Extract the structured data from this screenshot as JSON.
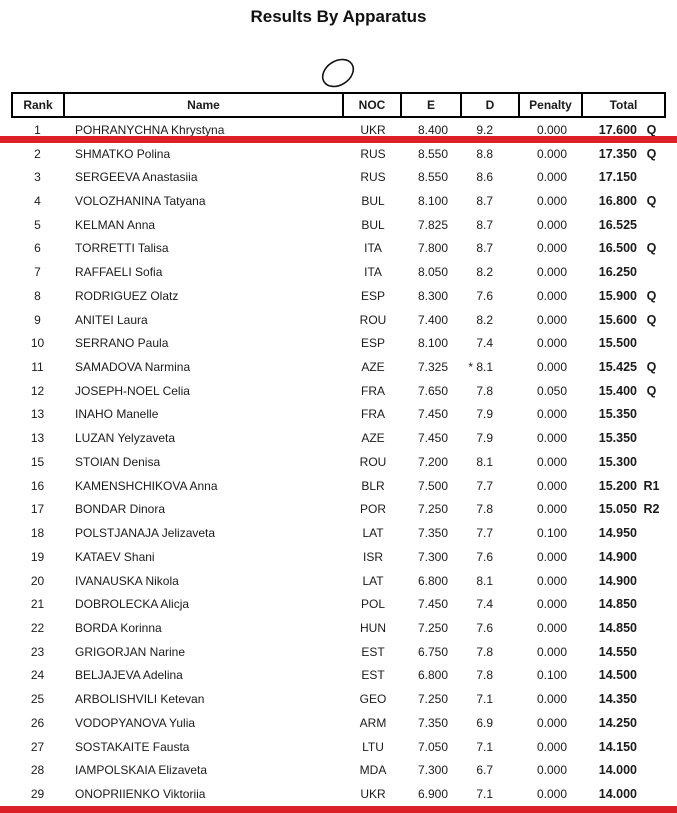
{
  "page": {
    "title": "Results By Apparatus"
  },
  "colors": {
    "accent_red": "#dc2027"
  },
  "table": {
    "columns": [
      "Rank",
      "Name",
      "NOC",
      "E",
      "D",
      "Penalty",
      "Total"
    ],
    "rows": [
      {
        "rank": "1",
        "name": "POHRANYCHNA Khrystyna",
        "noc": "UKR",
        "e": "8.400",
        "d": "9.2",
        "penalty": "0.000",
        "total": "17.600",
        "qual": "Q"
      },
      {
        "rank": "2",
        "name": "SHMATKO Polina",
        "noc": "RUS",
        "e": "8.550",
        "d": "8.8",
        "penalty": "0.000",
        "total": "17.350",
        "qual": "Q"
      },
      {
        "rank": "3",
        "name": "SERGEEVA Anastasiia",
        "noc": "RUS",
        "e": "8.550",
        "d": "8.6",
        "penalty": "0.000",
        "total": "17.150",
        "qual": ""
      },
      {
        "rank": "4",
        "name": "VOLOZHANINA Tatyana",
        "noc": "BUL",
        "e": "8.100",
        "d": "8.7",
        "penalty": "0.000",
        "total": "16.800",
        "qual": "Q"
      },
      {
        "rank": "5",
        "name": "KELMAN Anna",
        "noc": "BUL",
        "e": "7.825",
        "d": "8.7",
        "penalty": "0.000",
        "total": "16.525",
        "qual": ""
      },
      {
        "rank": "6",
        "name": "TORRETTI Talisa",
        "noc": "ITA",
        "e": "7.800",
        "d": "8.7",
        "penalty": "0.000",
        "total": "16.500",
        "qual": "Q"
      },
      {
        "rank": "7",
        "name": "RAFFAELI Sofia",
        "noc": "ITA",
        "e": "8.050",
        "d": "8.2",
        "penalty": "0.000",
        "total": "16.250",
        "qual": ""
      },
      {
        "rank": "8",
        "name": "RODRIGUEZ Olatz",
        "noc": "ESP",
        "e": "8.300",
        "d": "7.6",
        "penalty": "0.000",
        "total": "15.900",
        "qual": "Q"
      },
      {
        "rank": "9",
        "name": "ANITEI Laura",
        "noc": "ROU",
        "e": "7.400",
        "d": "8.2",
        "penalty": "0.000",
        "total": "15.600",
        "qual": "Q"
      },
      {
        "rank": "10",
        "name": "SERRANO Paula",
        "noc": "ESP",
        "e": "8.100",
        "d": "7.4",
        "penalty": "0.000",
        "total": "15.500",
        "qual": ""
      },
      {
        "rank": "11",
        "name": "SAMADOVA Narmina",
        "noc": "AZE",
        "e": "7.325",
        "d": "* 8.1",
        "penalty": "0.000",
        "total": "15.425",
        "qual": "Q"
      },
      {
        "rank": "12",
        "name": "JOSEPH-NOEL Celia",
        "noc": "FRA",
        "e": "7.650",
        "d": "7.8",
        "penalty": "0.050",
        "total": "15.400",
        "qual": "Q"
      },
      {
        "rank": "13",
        "name": "INAHO Manelle",
        "noc": "FRA",
        "e": "7.450",
        "d": "7.9",
        "penalty": "0.000",
        "total": "15.350",
        "qual": ""
      },
      {
        "rank": "13",
        "name": "LUZAN Yelyzaveta",
        "noc": "AZE",
        "e": "7.450",
        "d": "7.9",
        "penalty": "0.000",
        "total": "15.350",
        "qual": ""
      },
      {
        "rank": "15",
        "name": "STOIAN Denisa",
        "noc": "ROU",
        "e": "7.200",
        "d": "8.1",
        "penalty": "0.000",
        "total": "15.300",
        "qual": ""
      },
      {
        "rank": "16",
        "name": "KAMENSHCHIKOVA Anna",
        "noc": "BLR",
        "e": "7.500",
        "d": "7.7",
        "penalty": "0.000",
        "total": "15.200",
        "qual": "R1"
      },
      {
        "rank": "17",
        "name": "BONDAR Dinora",
        "noc": "POR",
        "e": "7.250",
        "d": "7.8",
        "penalty": "0.000",
        "total": "15.050",
        "qual": "R2"
      },
      {
        "rank": "18",
        "name": "POLSTJANAJA Jelizaveta",
        "noc": "LAT",
        "e": "7.350",
        "d": "7.7",
        "penalty": "0.100",
        "total": "14.950",
        "qual": ""
      },
      {
        "rank": "19",
        "name": "KATAEV Shani",
        "noc": "ISR",
        "e": "7.300",
        "d": "7.6",
        "penalty": "0.000",
        "total": "14.900",
        "qual": ""
      },
      {
        "rank": "20",
        "name": "IVANAUSKA Nikola",
        "noc": "LAT",
        "e": "6.800",
        "d": "8.1",
        "penalty": "0.000",
        "total": "14.900",
        "qual": ""
      },
      {
        "rank": "21",
        "name": "DOBROLECKA Alicja",
        "noc": "POL",
        "e": "7.450",
        "d": "7.4",
        "penalty": "0.000",
        "total": "14.850",
        "qual": ""
      },
      {
        "rank": "22",
        "name": "BORDA Korinna",
        "noc": "HUN",
        "e": "7.250",
        "d": "7.6",
        "penalty": "0.000",
        "total": "14.850",
        "qual": ""
      },
      {
        "rank": "23",
        "name": "GRIGORJAN Narine",
        "noc": "EST",
        "e": "6.750",
        "d": "7.8",
        "penalty": "0.000",
        "total": "14.550",
        "qual": ""
      },
      {
        "rank": "24",
        "name": "BELJAJEVA Adelina",
        "noc": "EST",
        "e": "6.800",
        "d": "7.8",
        "penalty": "0.100",
        "total": "14.500",
        "qual": ""
      },
      {
        "rank": "25",
        "name": "ARBOLISHVILI Ketevan",
        "noc": "GEO",
        "e": "7.250",
        "d": "7.1",
        "penalty": "0.000",
        "total": "14.350",
        "qual": ""
      },
      {
        "rank": "26",
        "name": "VODOPYANOVA Yulia",
        "noc": "ARM",
        "e": "7.350",
        "d": "6.9",
        "penalty": "0.000",
        "total": "14.250",
        "qual": ""
      },
      {
        "rank": "27",
        "name": "SOSTAKAITE Fausta",
        "noc": "LTU",
        "e": "7.050",
        "d": "7.1",
        "penalty": "0.000",
        "total": "14.150",
        "qual": ""
      },
      {
        "rank": "28",
        "name": "IAMPOLSKAIA Elizaveta",
        "noc": "MDA",
        "e": "7.300",
        "d": "6.7",
        "penalty": "0.000",
        "total": "14.000",
        "qual": ""
      },
      {
        "rank": "29",
        "name": "ONOPRIIENKO Viktoriia",
        "noc": "UKR",
        "e": "6.900",
        "d": "7.1",
        "penalty": "0.000",
        "total": "14.000",
        "qual": ""
      }
    ]
  }
}
